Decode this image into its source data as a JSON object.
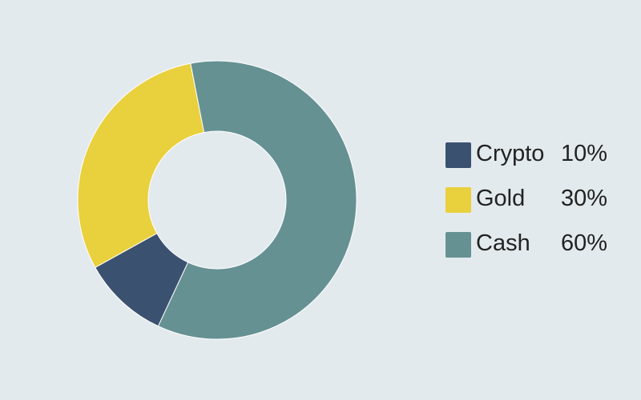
{
  "background": "#e3eaee",
  "chart_data": {
    "type": "pie",
    "variant": "donut",
    "title": "",
    "legend_position": "right",
    "slices": [
      {
        "label": "Crypto",
        "value": 10,
        "value_label": "10%",
        "color": "#3b5170"
      },
      {
        "label": "Gold",
        "value": 30,
        "value_label": "30%",
        "color": "#e9d03d"
      },
      {
        "label": "Cash",
        "value": 60,
        "value_label": "60%",
        "color": "#669193"
      }
    ]
  }
}
